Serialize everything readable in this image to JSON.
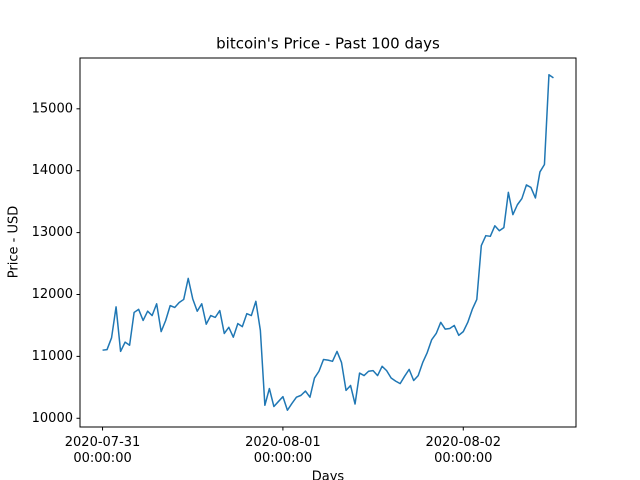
{
  "chart_data": {
    "type": "line",
    "title": "bitcoin's Price - Past 100 days",
    "xlabel": "Days",
    "ylabel": "Price - USD",
    "color": "#1f77b4",
    "x": [
      "2020-07-31 00:00:00",
      "2020-07-31 00:36:00",
      "2020-07-31 01:12:00",
      "2020-07-31 01:48:00",
      "2020-07-31 02:24:00",
      "2020-07-31 03:00:00",
      "2020-07-31 03:36:00",
      "2020-07-31 04:12:00",
      "2020-07-31 04:48:00",
      "2020-07-31 05:24:00",
      "2020-07-31 06:00:00",
      "2020-07-31 06:36:00",
      "2020-07-31 07:12:00",
      "2020-07-31 07:48:00",
      "2020-07-31 08:24:00",
      "2020-07-31 09:00:00",
      "2020-07-31 09:36:00",
      "2020-07-31 10:12:00",
      "2020-07-31 10:48:00",
      "2020-07-31 11:24:00",
      "2020-07-31 12:00:00",
      "2020-07-31 12:36:00",
      "2020-07-31 13:12:00",
      "2020-07-31 13:48:00",
      "2020-07-31 14:24:00",
      "2020-07-31 15:00:00",
      "2020-07-31 15:36:00",
      "2020-07-31 16:12:00",
      "2020-07-31 16:48:00",
      "2020-07-31 17:24:00",
      "2020-07-31 18:00:00",
      "2020-07-31 18:36:00",
      "2020-07-31 19:12:00",
      "2020-07-31 19:48:00",
      "2020-07-31 20:24:00",
      "2020-07-31 21:00:00",
      "2020-07-31 21:36:00",
      "2020-07-31 22:12:00",
      "2020-07-31 22:48:00",
      "2020-07-31 23:24:00",
      "2020-08-01 00:00:00",
      "2020-08-01 00:36:00",
      "2020-08-01 01:12:00",
      "2020-08-01 01:48:00",
      "2020-08-01 02:24:00",
      "2020-08-01 03:00:00",
      "2020-08-01 03:36:00",
      "2020-08-01 04:12:00",
      "2020-08-01 04:48:00",
      "2020-08-01 05:24:00",
      "2020-08-01 06:00:00",
      "2020-08-01 06:36:00",
      "2020-08-01 07:12:00",
      "2020-08-01 07:48:00",
      "2020-08-01 08:24:00",
      "2020-08-01 09:00:00",
      "2020-08-01 09:36:00",
      "2020-08-01 10:12:00",
      "2020-08-01 10:48:00",
      "2020-08-01 11:24:00",
      "2020-08-01 12:00:00",
      "2020-08-01 12:36:00",
      "2020-08-01 13:12:00",
      "2020-08-01 13:48:00",
      "2020-08-01 14:24:00",
      "2020-08-01 15:00:00",
      "2020-08-01 15:36:00",
      "2020-08-01 16:12:00",
      "2020-08-01 16:48:00",
      "2020-08-01 17:24:00",
      "2020-08-01 18:00:00",
      "2020-08-01 18:36:00",
      "2020-08-01 19:12:00",
      "2020-08-01 19:48:00",
      "2020-08-01 20:24:00",
      "2020-08-01 21:00:00",
      "2020-08-01 21:36:00",
      "2020-08-01 22:12:00",
      "2020-08-01 22:48:00",
      "2020-08-01 23:24:00",
      "2020-08-02 00:00:00",
      "2020-08-02 00:36:00",
      "2020-08-02 01:12:00",
      "2020-08-02 01:48:00",
      "2020-08-02 02:24:00",
      "2020-08-02 03:00:00",
      "2020-08-02 03:36:00",
      "2020-08-02 04:12:00",
      "2020-08-02 04:48:00",
      "2020-08-02 05:24:00",
      "2020-08-02 06:00:00",
      "2020-08-02 06:36:00",
      "2020-08-02 07:12:00",
      "2020-08-02 07:48:00",
      "2020-08-02 08:24:00",
      "2020-08-02 09:00:00",
      "2020-08-02 09:36:00",
      "2020-08-02 10:12:00",
      "2020-08-02 10:48:00",
      "2020-08-02 11:24:00",
      "2020-08-02 12:00:00"
    ],
    "values": [
      11100,
      11110,
      11300,
      11800,
      11080,
      11230,
      11180,
      11710,
      11760,
      11580,
      11730,
      11660,
      11850,
      11400,
      11580,
      11820,
      11790,
      11870,
      11920,
      12260,
      11930,
      11730,
      11850,
      11520,
      11660,
      11630,
      11740,
      11370,
      11470,
      11310,
      11530,
      11480,
      11690,
      11660,
      11890,
      11420,
      10210,
      10480,
      10190,
      10270,
      10350,
      10130,
      10240,
      10340,
      10370,
      10440,
      10340,
      10650,
      10760,
      10950,
      10940,
      10920,
      11080,
      10900,
      10450,
      10530,
      10230,
      10730,
      10690,
      10760,
      10770,
      10690,
      10840,
      10770,
      10650,
      10600,
      10560,
      10680,
      10790,
      10610,
      10690,
      10900,
      11060,
      11270,
      11370,
      11550,
      11440,
      11450,
      11500,
      11340,
      11400,
      11550,
      11760,
      11920,
      12790,
      12950,
      12940,
      13110,
      13030,
      13080,
      13650,
      13290,
      13450,
      13550,
      13770,
      13730,
      13560,
      13980,
      14100,
      15550,
      15500
    ],
    "xlim": [
      "2020-07-30 21:00:00",
      "2020-08-02 15:00:00"
    ],
    "xticks": [
      "2020-07-31 00:00:00",
      "2020-08-01 00:00:00",
      "2020-08-02 00:00:00"
    ],
    "ylim": [
      9859,
      15821
    ],
    "yticks": [
      10000,
      11000,
      12000,
      13000,
      14000,
      15000
    ]
  }
}
